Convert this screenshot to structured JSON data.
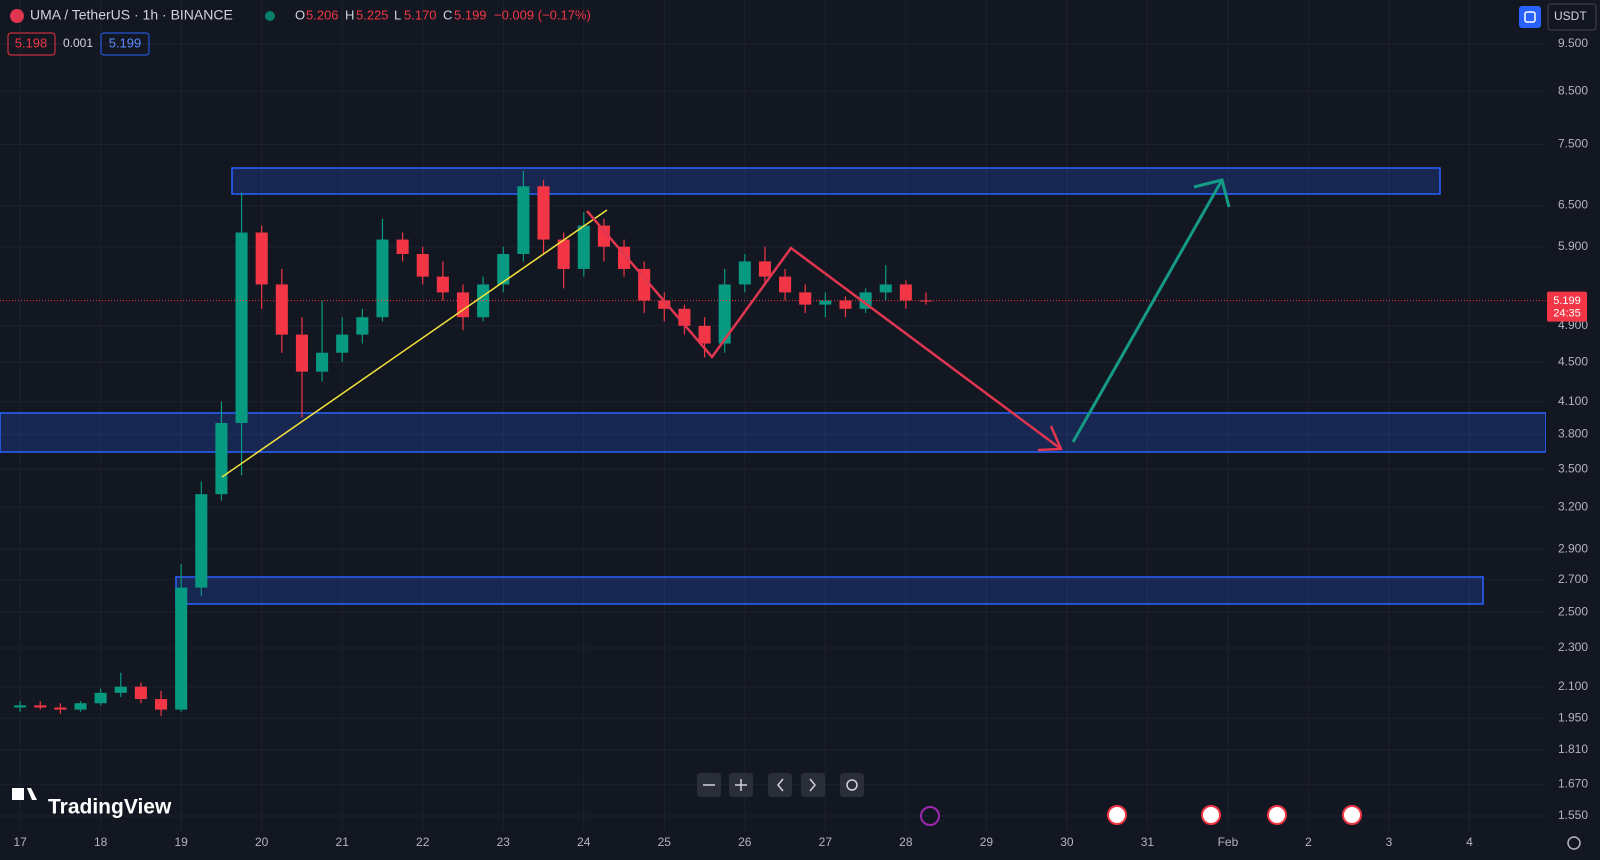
{
  "header": {
    "symbol": "UMA / TetherUS · 1h · BINANCE",
    "o_label": "O",
    "open": "5.206",
    "h_label": "H",
    "high": "5.225",
    "l_label": "L",
    "low": "5.170",
    "c_label": "C",
    "close": "5.199",
    "change": "−0.009 (−0.17%)",
    "bid": "5.198",
    "spread": "0.001",
    "ask": "5.199"
  },
  "currency_button": "USDT",
  "price_tag": {
    "price": 5.199,
    "countdown": "24:35"
  },
  "logo": "TradingView",
  "chart_data": {
    "type": "candlestick",
    "log_scale": true,
    "grid": true,
    "up_color": "#089981",
    "down_color": "#f23645",
    "x": [
      17,
      17.25,
      17.5,
      17.75,
      18,
      18.25,
      18.5,
      18.75,
      19,
      19.25,
      19.5,
      19.75,
      20,
      20.25,
      20.5,
      20.75,
      21,
      21.25,
      21.5,
      21.75,
      22,
      22.25,
      22.5,
      22.75,
      23,
      23.25,
      23.5,
      23.75,
      24,
      24.25,
      24.5,
      24.75,
      25,
      25.25,
      25.5,
      25.75,
      26,
      26.25,
      26.5,
      26.75,
      27,
      27.25,
      27.5,
      27.75,
      28,
      28.25
    ],
    "open": [
      2.0,
      2.01,
      2.0,
      1.99,
      2.02,
      2.07,
      2.1,
      2.04,
      1.99,
      2.65,
      3.3,
      3.9,
      6.1,
      5.4,
      4.8,
      4.4,
      4.6,
      4.8,
      5.0,
      6.0,
      5.8,
      5.5,
      5.3,
      5.0,
      5.4,
      5.8,
      6.8,
      6.0,
      5.6,
      6.2,
      5.9,
      5.6,
      5.2,
      5.1,
      4.9,
      4.7,
      5.4,
      5.7,
      5.5,
      5.3,
      5.15,
      5.2,
      5.1,
      5.3,
      5.4,
      5.2
    ],
    "high": [
      2.03,
      2.03,
      2.02,
      2.03,
      2.09,
      2.17,
      2.12,
      2.08,
      2.8,
      3.4,
      4.1,
      6.7,
      6.2,
      5.6,
      5.0,
      5.2,
      5.0,
      5.1,
      6.3,
      6.1,
      5.9,
      5.7,
      5.4,
      5.5,
      5.9,
      7.05,
      6.9,
      6.1,
      6.4,
      6.3,
      6.0,
      5.7,
      5.3,
      5.15,
      5.0,
      5.6,
      5.8,
      5.9,
      5.6,
      5.4,
      5.3,
      5.25,
      5.35,
      5.65,
      5.45,
      5.3
    ],
    "low": [
      1.98,
      1.99,
      1.97,
      1.98,
      2.01,
      2.05,
      2.02,
      1.96,
      1.98,
      2.6,
      3.25,
      3.45,
      5.1,
      4.6,
      3.95,
      4.3,
      4.5,
      4.7,
      4.95,
      5.7,
      5.4,
      5.2,
      4.85,
      4.95,
      5.3,
      5.7,
      5.8,
      5.35,
      5.5,
      5.7,
      5.5,
      5.05,
      4.95,
      4.8,
      4.55,
      4.6,
      5.3,
      5.4,
      5.2,
      5.05,
      5.0,
      5.0,
      5.05,
      5.2,
      5.1,
      5.15
    ],
    "close": [
      2.01,
      2.0,
      1.99,
      2.02,
      2.07,
      2.1,
      2.04,
      1.99,
      2.65,
      3.3,
      3.9,
      6.1,
      5.4,
      4.8,
      4.4,
      4.6,
      4.8,
      5.0,
      6.0,
      5.8,
      5.5,
      5.3,
      5.0,
      5.4,
      5.8,
      6.8,
      6.0,
      5.6,
      6.2,
      5.9,
      5.6,
      5.2,
      5.1,
      4.9,
      4.7,
      5.4,
      5.7,
      5.5,
      5.3,
      5.15,
      5.2,
      5.1,
      5.3,
      5.4,
      5.2,
      5.199
    ],
    "xlim": [
      16.75,
      35.95
    ],
    "xticks": [
      17,
      18,
      19,
      20,
      21,
      22,
      23,
      24,
      25,
      26,
      27,
      28,
      29,
      30,
      31,
      {
        "value": 32,
        "label": "Feb"
      },
      {
        "value": 33,
        "label": "2"
      },
      {
        "value": 34,
        "label": "3"
      },
      {
        "value": 35,
        "label": "4"
      }
    ],
    "ylim": [
      1.5,
      10
    ],
    "yticks": [
      {
        "value": 9.5,
        "label": "9.500"
      },
      {
        "value": 8.5,
        "label": "8.500"
      },
      {
        "value": 7.5,
        "label": "7.500"
      },
      {
        "value": 6.5,
        "label": "6.500"
      },
      {
        "value": 5.9,
        "label": "5.900"
      },
      {
        "value": 4.9,
        "label": "4.900"
      },
      {
        "value": 4.5,
        "label": "4.500"
      },
      {
        "value": 4.1,
        "label": "4.100"
      },
      {
        "value": 3.8,
        "label": "3.800"
      },
      {
        "value": 3.5,
        "label": "3.500"
      },
      {
        "value": 3.2,
        "label": "3.200"
      },
      {
        "value": 2.9,
        "label": "2.900"
      },
      {
        "value": 2.7,
        "label": "2.700"
      },
      {
        "value": 2.5,
        "label": "2.500"
      },
      {
        "value": 2.3,
        "label": "2.300"
      },
      {
        "value": 2.1,
        "label": "2.100"
      },
      {
        "value": 1.95,
        "label": "1.950"
      },
      {
        "value": 1.81,
        "label": "1.810"
      },
      {
        "value": 1.67,
        "label": "1.670"
      },
      {
        "value": 1.55,
        "label": "1.550"
      }
    ]
  }
}
